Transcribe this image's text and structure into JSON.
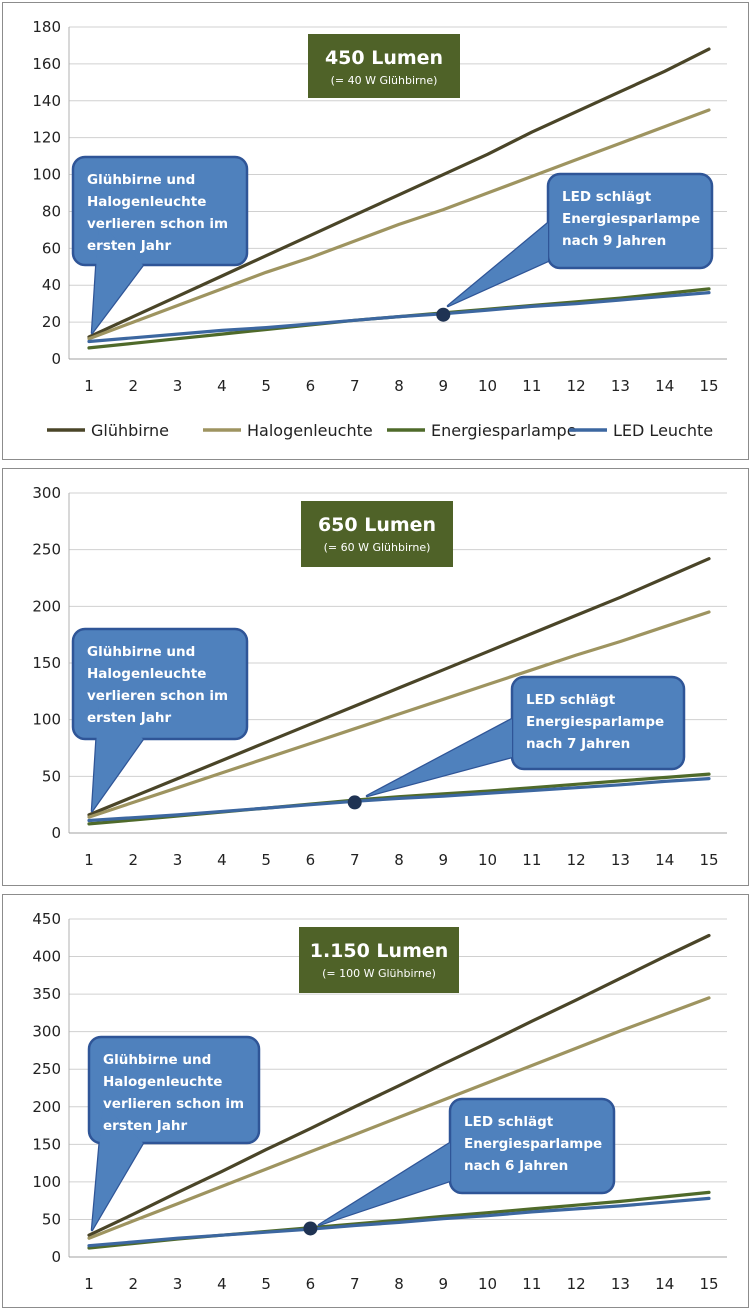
{
  "colors": {
    "Glühbirne": "#4a4528",
    "Halogenleuchte": "#9e9460",
    "Energiesparlampe": "#4f6a2a",
    "LED Leuchte": "#3c67a0",
    "title_box": "#4f6228",
    "callout_fill": "#4f81bd",
    "callout_border": "#2f5597",
    "marker": "#1f3353"
  },
  "chart_data": [
    {
      "type": "line",
      "title": "450 Lumen",
      "subtitle": "(= 40 W Glühbirne)",
      "categories": [
        "1",
        "2",
        "3",
        "4",
        "5",
        "6",
        "7",
        "8",
        "9",
        "10",
        "11",
        "12",
        "13",
        "14",
        "15"
      ],
      "ylim": [
        0,
        180
      ],
      "yticks": [
        "0",
        "20",
        "40",
        "60",
        "80",
        "100",
        "120",
        "140",
        "160",
        "180"
      ],
      "series": [
        {
          "name": "Glühbirne",
          "values": [
            12,
            23,
            34,
            45,
            56,
            67,
            78,
            89,
            100,
            111,
            123,
            134,
            145,
            156,
            168
          ]
        },
        {
          "name": "Halogenleuchte",
          "values": [
            11,
            20,
            29,
            38,
            47,
            55,
            64,
            73,
            81,
            90,
            99,
            108,
            117,
            126,
            135
          ]
        },
        {
          "name": "Energiesparlampe",
          "values": [
            6,
            8.5,
            11,
            13.5,
            16,
            18.5,
            21,
            23,
            25,
            27,
            29,
            31,
            33,
            35.5,
            38
          ]
        },
        {
          "name": "LED Leuchte",
          "values": [
            9.5,
            11.5,
            13.5,
            15.5,
            17,
            19,
            21,
            23,
            24.5,
            26.5,
            28.5,
            30,
            32,
            34,
            36
          ]
        }
      ],
      "show_legend": true,
      "legend_position": "bottom",
      "breakeven": {
        "x_index": 8,
        "y": 24
      },
      "callout_left": {
        "lines": [
          "Glühbirne und",
          "Halogenleuchte",
          "verlieren schon im",
          "ersten Jahr"
        ]
      },
      "callout_right": {
        "lines": [
          "LED schlägt",
          "Energiesparlampe",
          "nach 9 Jahren"
        ]
      }
    },
    {
      "type": "line",
      "title": "650 Lumen",
      "subtitle": "(= 60 W Glühbirne)",
      "categories": [
        "1",
        "2",
        "3",
        "4",
        "5",
        "6",
        "7",
        "8",
        "9",
        "10",
        "11",
        "12",
        "13",
        "14",
        "15"
      ],
      "ylim": [
        0,
        300
      ],
      "yticks": [
        "0",
        "50",
        "100",
        "150",
        "200",
        "250",
        "300"
      ],
      "series": [
        {
          "name": "Glühbirne",
          "values": [
            16,
            32,
            48,
            64,
            80,
            96,
            112,
            128,
            144,
            160,
            176,
            192,
            208,
            225,
            242
          ]
        },
        {
          "name": "Halogenleuchte",
          "values": [
            14,
            27,
            40,
            53,
            66,
            79,
            92,
            105,
            118,
            131,
            144,
            157,
            169,
            182,
            195
          ]
        },
        {
          "name": "Energiesparlampe",
          "values": [
            8,
            11.5,
            15,
            18.5,
            22,
            25.5,
            29,
            32,
            34.5,
            37,
            40,
            43,
            46,
            49,
            52
          ]
        },
        {
          "name": "LED Leuchte",
          "values": [
            11,
            13.5,
            16,
            19,
            22,
            25,
            28,
            30.5,
            32.5,
            35,
            37.5,
            40,
            42.5,
            45.5,
            48
          ]
        }
      ],
      "show_legend": false,
      "breakeven": {
        "x_index": 6,
        "y": 27
      },
      "callout_left": {
        "lines": [
          "Glühbirne und",
          "Halogenleuchte",
          "verlieren schon im",
          "ersten Jahr"
        ]
      },
      "callout_right": {
        "lines": [
          "LED schlägt",
          "Energiesparlampe",
          "nach 7 Jahren"
        ]
      }
    },
    {
      "type": "line",
      "title": "1.150 Lumen",
      "subtitle": "(= 100 W Glühbirne)",
      "categories": [
        "1",
        "2",
        "3",
        "4",
        "5",
        "6",
        "7",
        "8",
        "9",
        "10",
        "11",
        "12",
        "13",
        "14",
        "15"
      ],
      "ylim": [
        0,
        450
      ],
      "yticks": [
        "0",
        "50",
        "100",
        "150",
        "200",
        "250",
        "300",
        "350",
        "400",
        "450"
      ],
      "series": [
        {
          "name": "Glühbirne",
          "values": [
            29,
            57,
            86,
            114,
            143,
            171,
            200,
            228,
            257,
            285,
            314,
            342,
            371,
            400,
            428
          ]
        },
        {
          "name": "Halogenleuchte",
          "values": [
            25,
            48,
            71,
            94,
            117,
            140,
            163,
            186,
            209,
            232,
            255,
            278,
            301,
            323,
            345
          ]
        },
        {
          "name": "Energiesparlampe",
          "values": [
            12,
            18,
            24,
            29,
            34,
            39,
            44,
            49,
            54,
            59,
            64,
            69,
            74,
            80,
            86
          ]
        },
        {
          "name": "LED Leuchte",
          "values": [
            15,
            20,
            25,
            29,
            33,
            37,
            42,
            46,
            51,
            55,
            60,
            64,
            68,
            73,
            78
          ]
        }
      ],
      "show_legend": false,
      "breakeven": {
        "x_index": 5,
        "y": 38
      },
      "callout_left": {
        "lines": [
          "Glühbirne und",
          "Halogenleuchte",
          "verlieren schon im",
          "ersten Jahr"
        ]
      },
      "callout_right": {
        "lines": [
          "LED schlägt",
          "Energiesparlampe",
          "nach 6 Jahren"
        ]
      }
    }
  ]
}
